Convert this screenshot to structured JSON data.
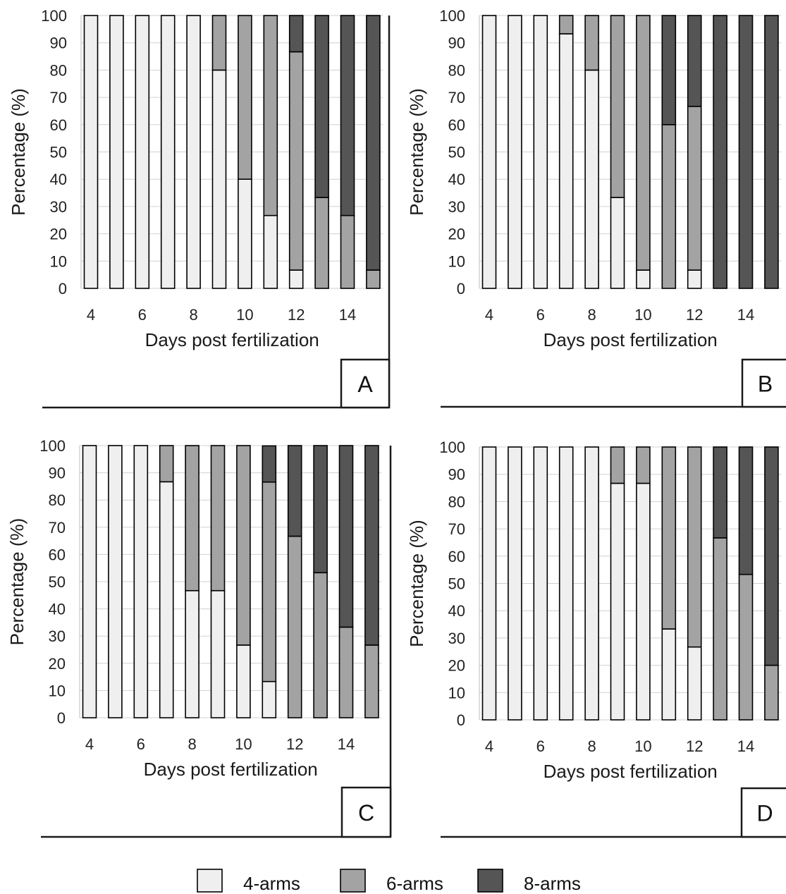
{
  "legend": [
    {
      "label": "4-arms",
      "color": "#efefef"
    },
    {
      "label": "6-arms",
      "color": "#a3a3a3"
    },
    {
      "label": "8-arms",
      "color": "#555555"
    }
  ],
  "chart_data": [
    {
      "type": "bar",
      "stacked": true,
      "panel": "A",
      "xlabel": "Days post fertilization",
      "ylabel": "Percentage (%)",
      "ylim": [
        0,
        100
      ],
      "yticks": [
        0,
        10,
        20,
        30,
        40,
        50,
        60,
        70,
        80,
        90,
        100
      ],
      "xticks": [
        4,
        6,
        8,
        10,
        12,
        14
      ],
      "x": [
        4,
        5,
        6,
        7,
        8,
        9,
        10,
        11,
        12,
        13,
        14,
        15
      ],
      "series": [
        {
          "name": "4-arms",
          "values": [
            100,
            100,
            100,
            100,
            100,
            80,
            40,
            26.7,
            6.7,
            0,
            0,
            0
          ]
        },
        {
          "name": "6-arms",
          "values": [
            0,
            0,
            0,
            0,
            0,
            20,
            60,
            73.3,
            80,
            33.3,
            26.7,
            6.7
          ]
        },
        {
          "name": "8-arms",
          "values": [
            0,
            0,
            0,
            0,
            0,
            0,
            0,
            0,
            13.3,
            66.7,
            73.3,
            93.3
          ]
        }
      ]
    },
    {
      "type": "bar",
      "stacked": true,
      "panel": "B",
      "xlabel": "Days post fertilization",
      "ylabel": "Percentage (%)",
      "ylim": [
        0,
        100
      ],
      "yticks": [
        0,
        10,
        20,
        30,
        40,
        50,
        60,
        70,
        80,
        90,
        100
      ],
      "xticks": [
        4,
        6,
        8,
        10,
        12,
        14
      ],
      "x": [
        4,
        5,
        6,
        7,
        8,
        9,
        10,
        11,
        12,
        13,
        14,
        15
      ],
      "series": [
        {
          "name": "4-arms",
          "values": [
            100,
            100,
            100,
            93.3,
            80,
            33.3,
            6.7,
            0,
            6.7,
            0,
            0,
            0
          ]
        },
        {
          "name": "6-arms",
          "values": [
            0,
            0,
            0,
            6.7,
            20,
            66.7,
            93.3,
            60,
            60,
            0,
            0,
            0
          ]
        },
        {
          "name": "8-arms",
          "values": [
            0,
            0,
            0,
            0,
            0,
            0,
            0,
            40,
            33.3,
            100,
            100,
            100
          ]
        }
      ]
    },
    {
      "type": "bar",
      "stacked": true,
      "panel": "C",
      "xlabel": "Days post fertilization",
      "ylabel": "Percentage (%)",
      "ylim": [
        0,
        100
      ],
      "yticks": [
        0,
        10,
        20,
        30,
        40,
        50,
        60,
        70,
        80,
        90,
        100
      ],
      "xticks": [
        4,
        6,
        8,
        10,
        12,
        14
      ],
      "x": [
        4,
        5,
        6,
        7,
        8,
        9,
        10,
        11,
        12,
        13,
        14,
        15
      ],
      "series": [
        {
          "name": "4-arms",
          "values": [
            100,
            100,
            100,
            86.7,
            46.7,
            46.7,
            26.7,
            13.3,
            0,
            0,
            0,
            0
          ]
        },
        {
          "name": "6-arms",
          "values": [
            0,
            0,
            0,
            13.3,
            53.3,
            53.3,
            73.3,
            73.3,
            66.7,
            53.3,
            33.3,
            26.7
          ]
        },
        {
          "name": "8-arms",
          "values": [
            0,
            0,
            0,
            0,
            0,
            0,
            0,
            13.3,
            33.3,
            46.7,
            66.7,
            73.3
          ]
        }
      ]
    },
    {
      "type": "bar",
      "stacked": true,
      "panel": "D",
      "xlabel": "Days post fertilization",
      "ylabel": "Percentage (%)",
      "ylim": [
        0,
        100
      ],
      "yticks": [
        0,
        10,
        20,
        30,
        40,
        50,
        60,
        70,
        80,
        90,
        100
      ],
      "xticks": [
        4,
        6,
        8,
        10,
        12,
        14
      ],
      "x": [
        4,
        5,
        6,
        7,
        8,
        9,
        10,
        11,
        12,
        13,
        14,
        15
      ],
      "series": [
        {
          "name": "4-arms",
          "values": [
            100,
            100,
            100,
            100,
            100,
            86.7,
            86.7,
            33.3,
            26.7,
            0,
            0,
            0
          ]
        },
        {
          "name": "6-arms",
          "values": [
            0,
            0,
            0,
            0,
            0,
            13.3,
            13.3,
            66.7,
            73.3,
            66.7,
            53.3,
            20
          ]
        },
        {
          "name": "8-arms",
          "values": [
            0,
            0,
            0,
            0,
            0,
            0,
            0,
            0,
            0,
            33.3,
            46.7,
            80
          ]
        }
      ]
    }
  ]
}
